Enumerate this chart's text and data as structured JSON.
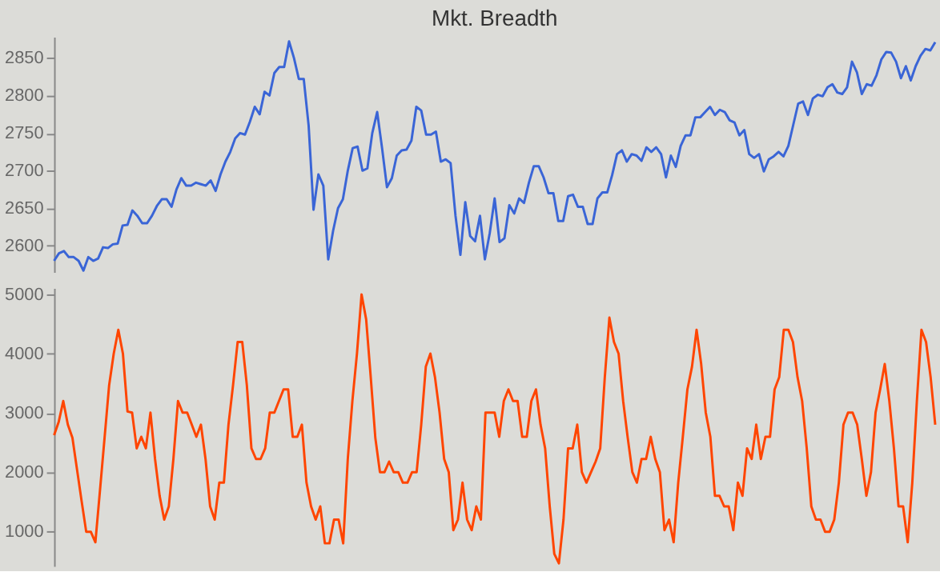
{
  "chart_data": [
    {
      "type": "line",
      "title": "Mkt. Breadth",
      "tick_labels": "y",
      "ylim": [
        2565,
        2878
      ],
      "yticks": [
        2600,
        2650,
        2700,
        2750,
        2800,
        2850
      ],
      "series": [
        {
          "color": "#3a65d6",
          "values": [
            2580,
            2590,
            2593,
            2585,
            2585,
            2580,
            2567,
            2585,
            2580,
            2583,
            2598,
            2597,
            2602,
            2603,
            2627,
            2628,
            2647,
            2640,
            2630,
            2630,
            2640,
            2653,
            2662,
            2662,
            2652,
            2675,
            2690,
            2680,
            2680,
            2684,
            2682,
            2680,
            2687,
            2673,
            2695,
            2712,
            2725,
            2743,
            2750,
            2748,
            2765,
            2785,
            2775,
            2805,
            2800,
            2830,
            2838,
            2838,
            2872,
            2850,
            2822,
            2822,
            2760,
            2648,
            2695,
            2680,
            2582,
            2620,
            2650,
            2662,
            2700,
            2730,
            2732,
            2700,
            2703,
            2750,
            2778,
            2730,
            2678,
            2690,
            2720,
            2727,
            2728,
            2740,
            2785,
            2780,
            2748,
            2748,
            2752,
            2712,
            2715,
            2710,
            2640,
            2588,
            2658,
            2613,
            2606,
            2640,
            2582,
            2617,
            2663,
            2605,
            2610,
            2654,
            2643,
            2663,
            2657,
            2684,
            2706,
            2706,
            2691,
            2670,
            2670,
            2633,
            2633,
            2666,
            2668,
            2652,
            2652,
            2629,
            2629,
            2663,
            2671,
            2671,
            2694,
            2722,
            2727,
            2712,
            2722,
            2720,
            2713,
            2731,
            2725,
            2731,
            2722,
            2691,
            2720,
            2705,
            2733,
            2747,
            2747,
            2771,
            2771,
            2778,
            2785,
            2774,
            2781,
            2778,
            2767,
            2764,
            2747,
            2754,
            2722,
            2717,
            2722,
            2699,
            2715,
            2719,
            2725,
            2719,
            2733,
            2761,
            2789,
            2792,
            2774,
            2796,
            2801,
            2799,
            2811,
            2815,
            2804,
            2802,
            2811,
            2845,
            2831,
            2802,
            2815,
            2813,
            2827,
            2848,
            2858,
            2857,
            2845,
            2823,
            2839,
            2820,
            2839,
            2853,
            2862,
            2860,
            2871
          ]
        }
      ]
    },
    {
      "type": "line",
      "tick_labels": "y",
      "ylim": [
        410,
        5110
      ],
      "yticks": [
        1000,
        2000,
        3000,
        4000,
        5000
      ],
      "series": [
        {
          "color": "#ff4500",
          "values": [
            2621,
            2844,
            3200,
            2800,
            2577,
            2042,
            1508,
            991,
            991,
            813,
            1686,
            2577,
            3468,
            4002,
            4403,
            4002,
            3022,
            3004,
            2400,
            2595,
            2400,
            3004,
            2220,
            1597,
            1196,
            1419,
            2220,
            3200,
            3004,
            3004,
            2800,
            2595,
            2800,
            2220,
            1419,
            1196,
            1820,
            1820,
            2800,
            3468,
            4198,
            4198,
            3468,
            2400,
            2220,
            2220,
            2400,
            3004,
            3004,
            3200,
            3396,
            3396,
            2595,
            2595,
            2800,
            1820,
            1419,
            1196,
            1419,
            795,
            795,
            1196,
            1196,
            795,
            2220,
            3200,
            4002,
            5000,
            4581,
            3601,
            2577,
            1998,
            1998,
            2176,
            1998,
            1998,
            1820,
            1820,
            1998,
            1998,
            2800,
            3780,
            4002,
            3601,
            3004,
            2220,
            1998,
            1018,
            1196,
            1820,
            1196,
            1018,
            1419,
            1196,
            3004,
            3004,
            3004,
            2595,
            3200,
            3396,
            3200,
            3200,
            2595,
            2595,
            3200,
            3396,
            2800,
            2400,
            1419,
            617,
            457,
            1196,
            2400,
            2400,
            2800,
            1998,
            1820,
            1998,
            2176,
            2400,
            3601,
            4608,
            4198,
            4002,
            3200,
            2577,
            1998,
            1820,
            2220,
            2220,
            2595,
            2220,
            1998,
            1018,
            1196,
            813,
            1820,
            2595,
            3396,
            3780,
            4403,
            3825,
            3004,
            2595,
            1597,
            1597,
            1419,
            1419,
            1018,
            1820,
            1597,
            2400,
            2220,
            2800,
            2220,
            2595,
            2595,
            3396,
            3601,
            4403,
            4403,
            4198,
            3601,
            3200,
            2400,
            1419,
            1196,
            1196,
            991,
            991,
            1196,
            1820,
            2800,
            3004,
            3004,
            2800,
            2220,
            1597,
            1998,
            3004,
            3396,
            3825,
            3200,
            2400,
            1419,
            1419,
            813,
            1820,
            3200,
            4403,
            4198,
            3601,
            2800
          ]
        }
      ]
    }
  ]
}
